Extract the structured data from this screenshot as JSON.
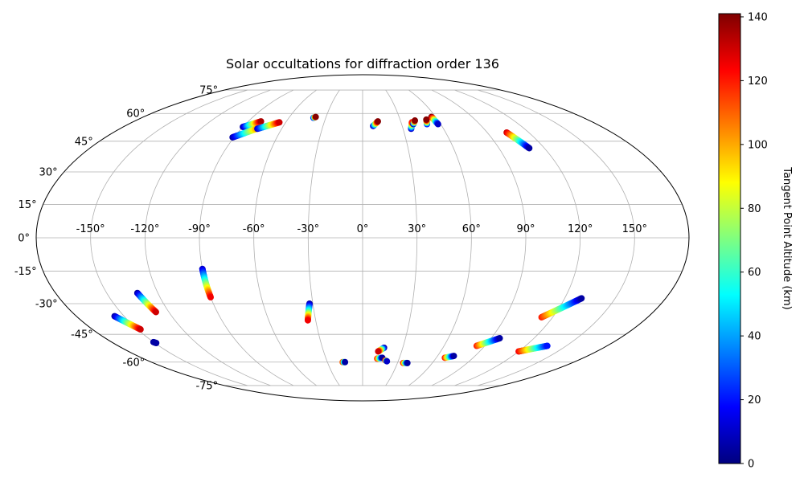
{
  "chart_data": {
    "type": "scatter",
    "projection": "mollweide",
    "title": "Solar occultations for diffraction order 136",
    "grid": true,
    "colormap": "jet",
    "longitude_ticks": [
      -150,
      -120,
      -90,
      -60,
      -30,
      0,
      30,
      60,
      90,
      120,
      150
    ],
    "longitude_tick_labels": [
      "-150°",
      "-120°",
      "-90°",
      "-60°",
      "-30°",
      "0°",
      "30°",
      "60°",
      "90°",
      "120°",
      "150°"
    ],
    "latitude_ticks": [
      -75,
      -60,
      -45,
      -30,
      -15,
      0,
      15,
      30,
      45,
      60,
      75
    ],
    "latitude_tick_labels": [
      "-75°",
      "-60°",
      "-45°",
      "-30°",
      "-15°",
      "0°",
      "15°",
      "30°",
      "45°",
      "60°",
      "75°"
    ],
    "colorbar": {
      "label": "Tangent Point Altitude (km)",
      "range": [
        0,
        141
      ],
      "ticks": [
        0,
        20,
        40,
        60,
        80,
        100,
        120,
        140
      ],
      "tick_labels": [
        "0",
        "20",
        "40",
        "60",
        "80",
        "100",
        "120",
        "140"
      ]
    },
    "tracks": [
      {
        "start": [
          -90,
          52.5
        ],
        "end": [
          -80,
          55.5
        ],
        "alt_start": 5,
        "alt_end": 135
      },
      {
        "start": [
          -91,
          47
        ],
        "end": [
          -76,
          52.5
        ],
        "alt_start": 5,
        "alt_end": 120
      },
      {
        "start": [
          -78,
          51.5
        ],
        "end": [
          -65,
          55
        ],
        "alt_start": 10,
        "alt_end": 130
      },
      {
        "start": [
          -40,
          57.5
        ],
        "end": [
          -38.5,
          58
        ],
        "alt_start": 20,
        "alt_end": 140
      },
      {
        "start": [
          8,
          53
        ],
        "end": [
          12,
          55.5
        ],
        "alt_start": 10,
        "alt_end": 140
      },
      {
        "start": [
          36,
          51.5
        ],
        "end": [
          38.5,
          55
        ],
        "alt_start": 10,
        "alt_end": 120
      },
      {
        "start": [
          39,
          54
        ],
        "end": [
          41.5,
          56
        ],
        "alt_start": 10,
        "alt_end": 140
      },
      {
        "start": [
          49.5,
          54
        ],
        "end": [
          51,
          56.5
        ],
        "alt_start": 20,
        "alt_end": 140
      },
      {
        "start": [
          56.5,
          58
        ],
        "end": [
          58,
          54
        ],
        "alt_start": 140,
        "alt_end": 10
      },
      {
        "start": [
          104,
          49.5
        ],
        "end": [
          110,
          41.5
        ],
        "alt_start": 130,
        "alt_end": 5
      },
      {
        "start": [
          -90,
          -14
        ],
        "end": [
          -90,
          -27
        ],
        "alt_start": 10,
        "alt_end": 125
      },
      {
        "start": [
          -132,
          -25
        ],
        "end": [
          -128,
          -34
        ],
        "alt_start": 5,
        "alt_end": 130
      },
      {
        "start": [
          -156,
          -36
        ],
        "end": [
          -148,
          -42.5
        ],
        "alt_start": 5,
        "alt_end": 130
      },
      {
        "start": [
          -150,
          -49
        ],
        "end": [
          -149,
          -49.5
        ],
        "alt_start": 5,
        "alt_end": 5
      },
      {
        "start": [
          -32,
          -30
        ],
        "end": [
          -35,
          -38
        ],
        "alt_start": 5,
        "alt_end": 125
      },
      {
        "start": [
          -17,
          -60
        ],
        "end": [
          -15,
          -60
        ],
        "alt_start": 110,
        "alt_end": 5
      },
      {
        "start": [
          16,
          -52
        ],
        "end": [
          12,
          -54
        ],
        "alt_start": 5,
        "alt_end": 130
      },
      {
        "start": [
          12,
          -58
        ],
        "end": [
          16,
          -57.5
        ],
        "alt_start": 120,
        "alt_end": 5
      },
      {
        "start": [
          19,
          -59
        ],
        "end": [
          20.5,
          -59.5
        ],
        "alt_start": 120,
        "alt_end": 10
      },
      {
        "start": [
          35,
          -60.5
        ],
        "end": [
          38.5,
          -60.5
        ],
        "alt_start": 120,
        "alt_end": 5
      },
      {
        "start": [
          67,
          -57.5
        ],
        "end": [
          73,
          -56.5
        ],
        "alt_start": 120,
        "alt_end": 5
      },
      {
        "start": [
          84,
          -51
        ],
        "end": [
          96,
          -47
        ],
        "alt_start": 120,
        "alt_end": 5
      },
      {
        "start": [
          113,
          -36.5
        ],
        "end": [
          130,
          -27.5
        ],
        "alt_start": 120,
        "alt_end": 5
      },
      {
        "start": [
          120,
          -54
        ],
        "end": [
          136,
          -51
        ],
        "alt_start": 125,
        "alt_end": 20
      }
    ]
  }
}
